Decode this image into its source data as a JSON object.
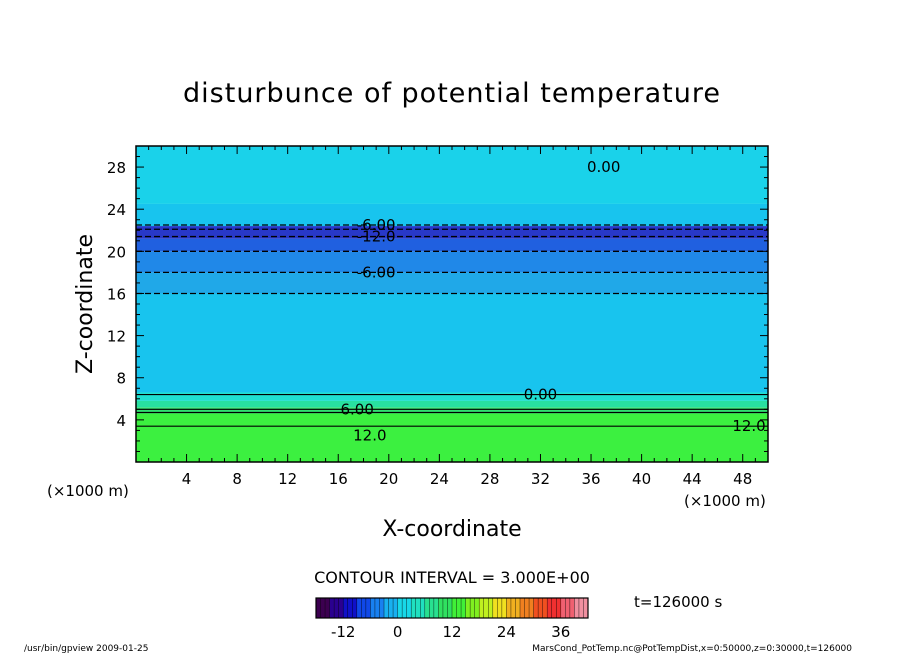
{
  "chart_data": {
    "type": "heatmap",
    "title": "disturbunce of potential temperature",
    "xlabel": "X-coordinate",
    "ylabel": "Z-coordinate",
    "x_unit_left": "(×1000 m)",
    "x_unit_right": "(×1000 m)",
    "xlim": [
      0,
      50
    ],
    "ylim": [
      0,
      30
    ],
    "x_ticks": [
      4,
      8,
      12,
      16,
      20,
      24,
      28,
      32,
      36,
      40,
      44,
      48
    ],
    "y_ticks": [
      4,
      8,
      12,
      16,
      20,
      24,
      28
    ],
    "contour_interval_text": "CONTOUR INTERVAL = 3.000E+00",
    "time_text": "t=126000 s",
    "colorbar": {
      "min": -18,
      "max": 42,
      "ticks": [
        -12,
        0,
        12,
        24,
        36
      ]
    },
    "bands": [
      {
        "z0": 0.0,
        "z1": 4.6,
        "value": 15,
        "color": "#3cf040"
      },
      {
        "z0": 4.6,
        "z1": 5.2,
        "value": 12,
        "color": "#30e070"
      },
      {
        "z0": 5.2,
        "z1": 5.8,
        "value": 9,
        "color": "#28e0a0"
      },
      {
        "z0": 5.8,
        "z1": 6.6,
        "value": 3,
        "color": "#20e0d0"
      },
      {
        "z0": 6.6,
        "z1": 16.0,
        "value": 0,
        "color": "#18c4ee"
      },
      {
        "z0": 16.0,
        "z1": 18.0,
        "value": -3,
        "color": "#20a8e8"
      },
      {
        "z0": 18.0,
        "z1": 20.0,
        "value": -6,
        "color": "#2088e8"
      },
      {
        "z0": 20.0,
        "z1": 21.2,
        "value": -9,
        "color": "#2060e0"
      },
      {
        "z0": 21.2,
        "z1": 22.4,
        "value": -12,
        "color": "#2838c8"
      },
      {
        "z0": 22.4,
        "z1": 24.5,
        "value": 0,
        "color": "#18c4ee"
      },
      {
        "z0": 24.5,
        "z1": 30.0,
        "value": 0,
        "color": "#1ad2ea"
      }
    ],
    "contours": [
      {
        "z": 22.5,
        "style": "dashed",
        "label": "-6.00",
        "label_x": 19
      },
      {
        "z": 22.1,
        "style": "dashed",
        "label": "",
        "label_x": 0
      },
      {
        "z": 21.4,
        "style": "dashed",
        "label": "-12.0",
        "label_x": 19
      },
      {
        "z": 20.0,
        "style": "dashed",
        "label": "",
        "label_x": 0
      },
      {
        "z": 18.0,
        "style": "dashed",
        "label": "-6.00",
        "label_x": 19
      },
      {
        "z": 16.0,
        "style": "dashed",
        "label": "",
        "label_x": 0
      },
      {
        "z": 6.4,
        "style": "solid",
        "label": "0.00",
        "label_x": 32
      },
      {
        "z": 5.0,
        "style": "solid",
        "label": "6.00",
        "label_x": 17.5
      },
      {
        "z": 4.7,
        "style": "solid",
        "label": "",
        "label_x": 0
      },
      {
        "z": 3.4,
        "style": "solid",
        "label": "12.0",
        "label_x": 48.5
      }
    ],
    "top_label": {
      "text": "0.00",
      "x": 37,
      "z": 28
    },
    "mid_label": {
      "text": "12.0",
      "x": 18.5,
      "z": 2.5
    },
    "palette": [
      "#3c0050",
      "#2a0090",
      "#1010c8",
      "#1048e8",
      "#1880f0",
      "#18b0f0",
      "#18d8e8",
      "#20e0c0",
      "#28e090",
      "#30e060",
      "#40f038",
      "#80f020",
      "#c0f020",
      "#f0e020",
      "#f0b020",
      "#f08020",
      "#f05020",
      "#f03030",
      "#f06070",
      "#f090a0"
    ]
  },
  "footer": {
    "left": "/usr/bin/gpview   2009-01-25",
    "right": "MarsCond_PotTemp.nc@PotTempDist,x=0:50000,z=0:30000,t=126000"
  }
}
